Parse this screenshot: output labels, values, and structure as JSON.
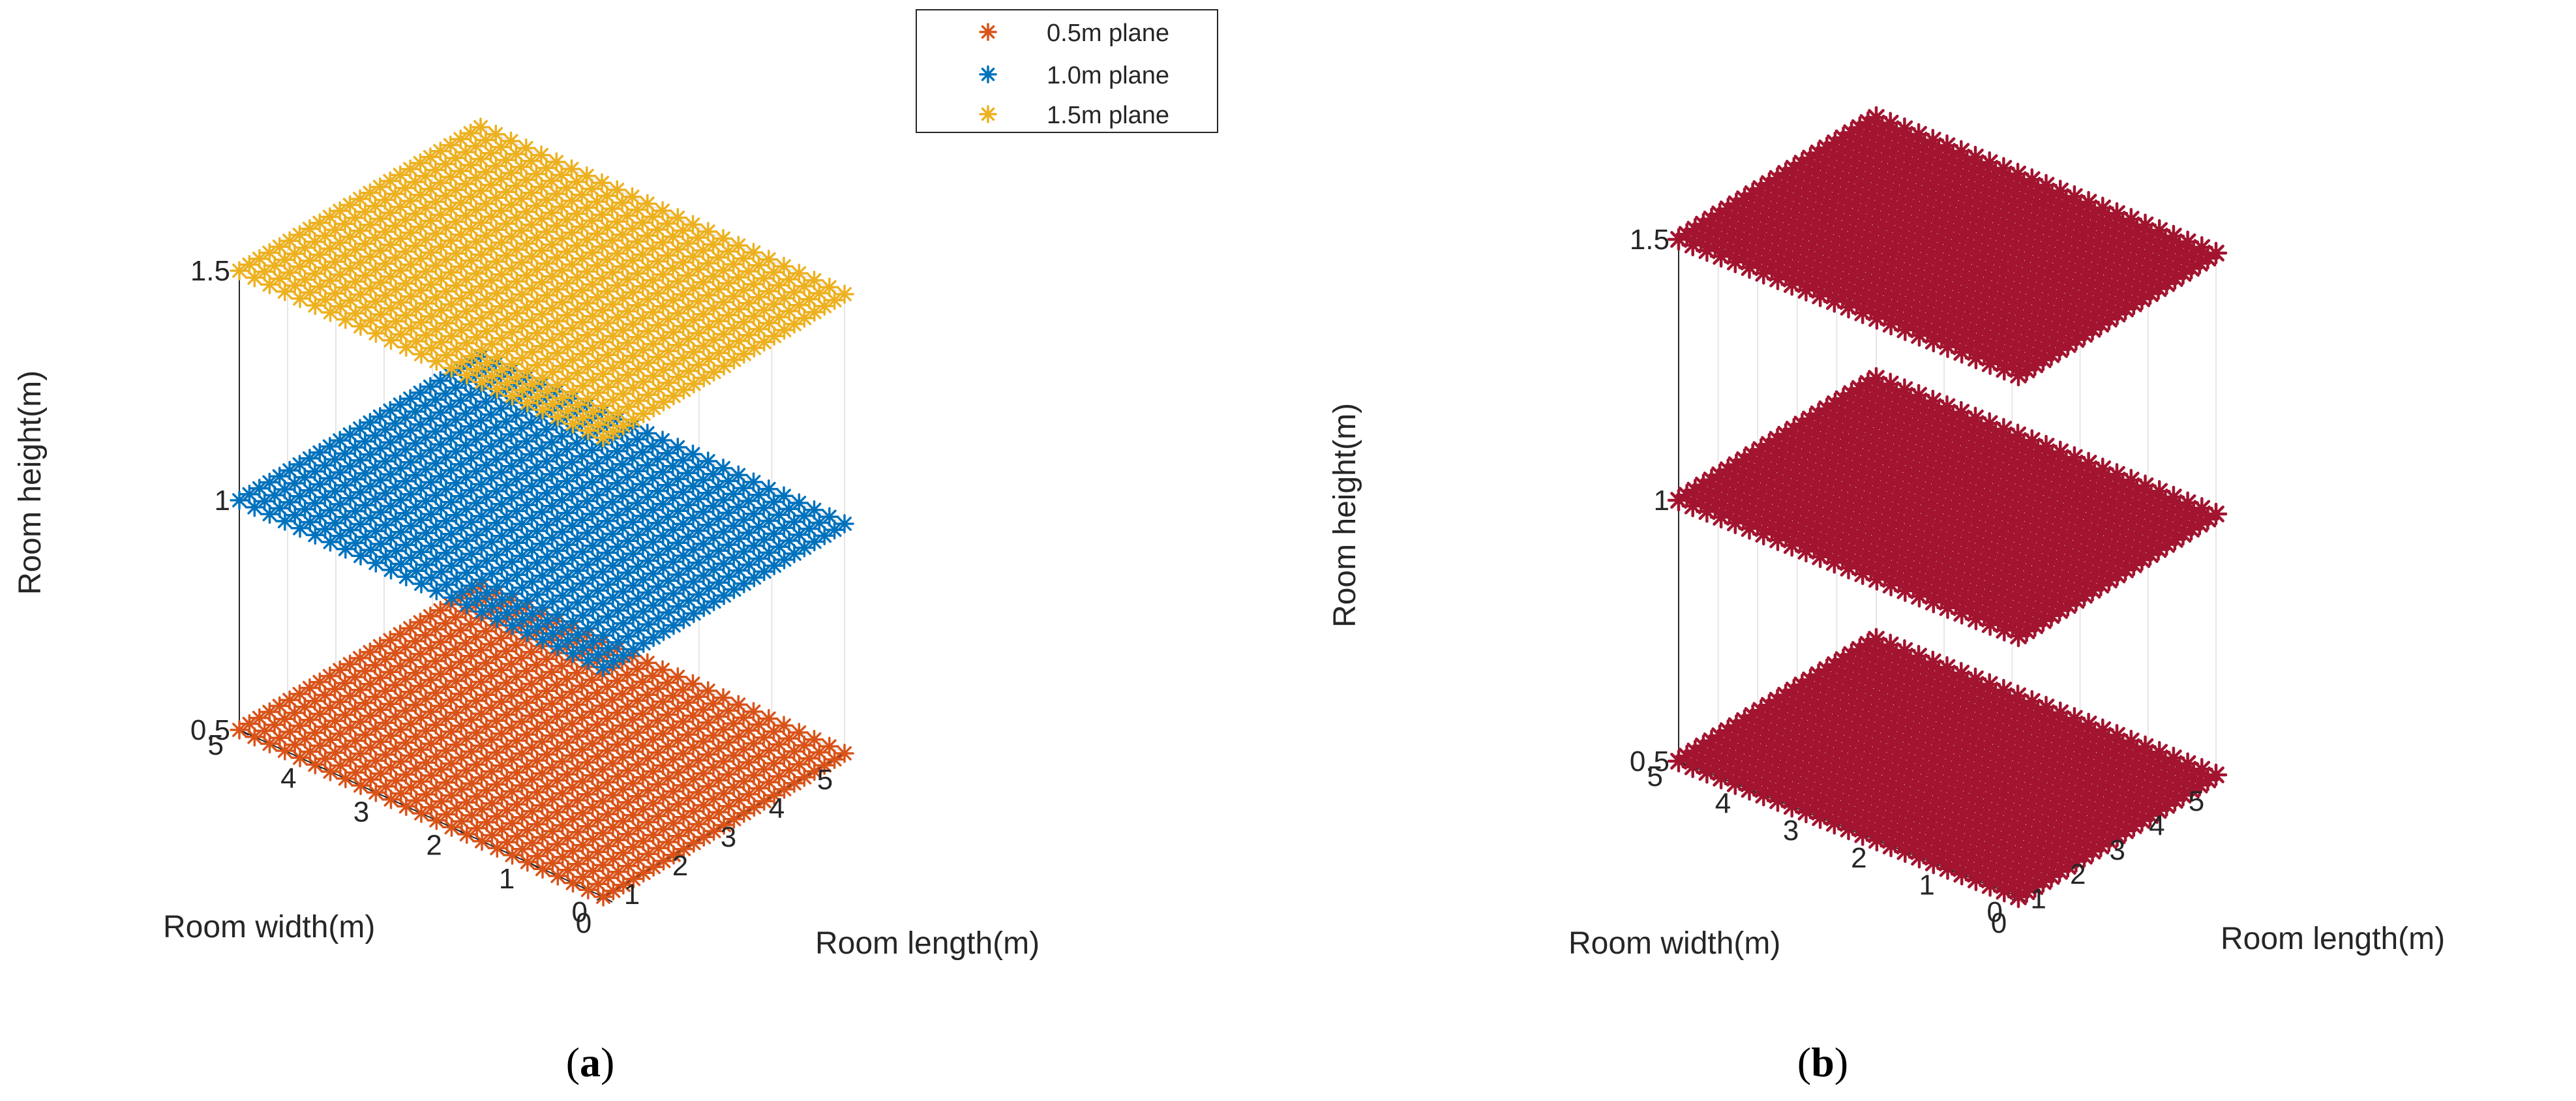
{
  "chart_data": [
    {
      "type": "scatter",
      "panel": "(a)",
      "caption_letter": "a",
      "xlabel": "Room length(m)",
      "ylabel": "Room width(m)",
      "zlabel": "Room height(m)",
      "xlim": [
        0,
        5
      ],
      "ylim": [
        0,
        5
      ],
      "zlim": [
        0.5,
        1.5
      ],
      "x_ticks": [
        "0",
        "1",
        "2",
        "3",
        "4",
        "5"
      ],
      "y_ticks": [
        "0",
        "1",
        "2",
        "3",
        "4",
        "5"
      ],
      "z_ticks": [
        "0.5",
        "1",
        "1.5"
      ],
      "grid": true,
      "marker": "*",
      "legend_position": "top-right",
      "grid_points_per_axis": 25,
      "series": [
        {
          "name": "0.5m plane",
          "color": "#D95319",
          "z": 0.5,
          "x_range": [
            0,
            5
          ],
          "y_range": [
            0,
            5
          ]
        },
        {
          "name": "1.0m plane",
          "color": "#0072BD",
          "z": 1.0,
          "x_range": [
            0,
            5
          ],
          "y_range": [
            0,
            5
          ]
        },
        {
          "name": "1.5m plane",
          "color": "#EDB120",
          "z": 1.5,
          "x_range": [
            0,
            5
          ],
          "y_range": [
            0,
            5
          ]
        }
      ]
    },
    {
      "type": "scatter",
      "panel": "(b)",
      "caption_letter": "b",
      "xlabel": "Room length(m)",
      "ylabel": "Room width(m)",
      "zlabel": "Room height(m)",
      "xlim": [
        0,
        5
      ],
      "ylim": [
        0,
        5
      ],
      "zlim": [
        0.5,
        1.5
      ],
      "x_ticks": [
        "0",
        "1",
        "2",
        "3",
        "4",
        "5"
      ],
      "y_ticks": [
        "0",
        "1",
        "2",
        "3",
        "4",
        "5"
      ],
      "z_ticks": [
        "0.5",
        "1",
        "1.5"
      ],
      "grid": true,
      "marker": "*",
      "grid_points_per_axis": 25,
      "series": [
        {
          "name": "0.5m plane",
          "color": "#A2142F",
          "z": 0.5,
          "x_range": [
            0,
            5
          ],
          "y_range": [
            0,
            5
          ]
        },
        {
          "name": "1.0m plane",
          "color": "#A2142F",
          "z": 1.0,
          "x_range": [
            0,
            5
          ],
          "y_range": [
            0,
            5
          ]
        },
        {
          "name": "1.5m plane",
          "color": "#A2142F",
          "z": 1.5,
          "x_range": [
            0,
            5
          ],
          "y_range": [
            0,
            5
          ]
        }
      ]
    }
  ]
}
